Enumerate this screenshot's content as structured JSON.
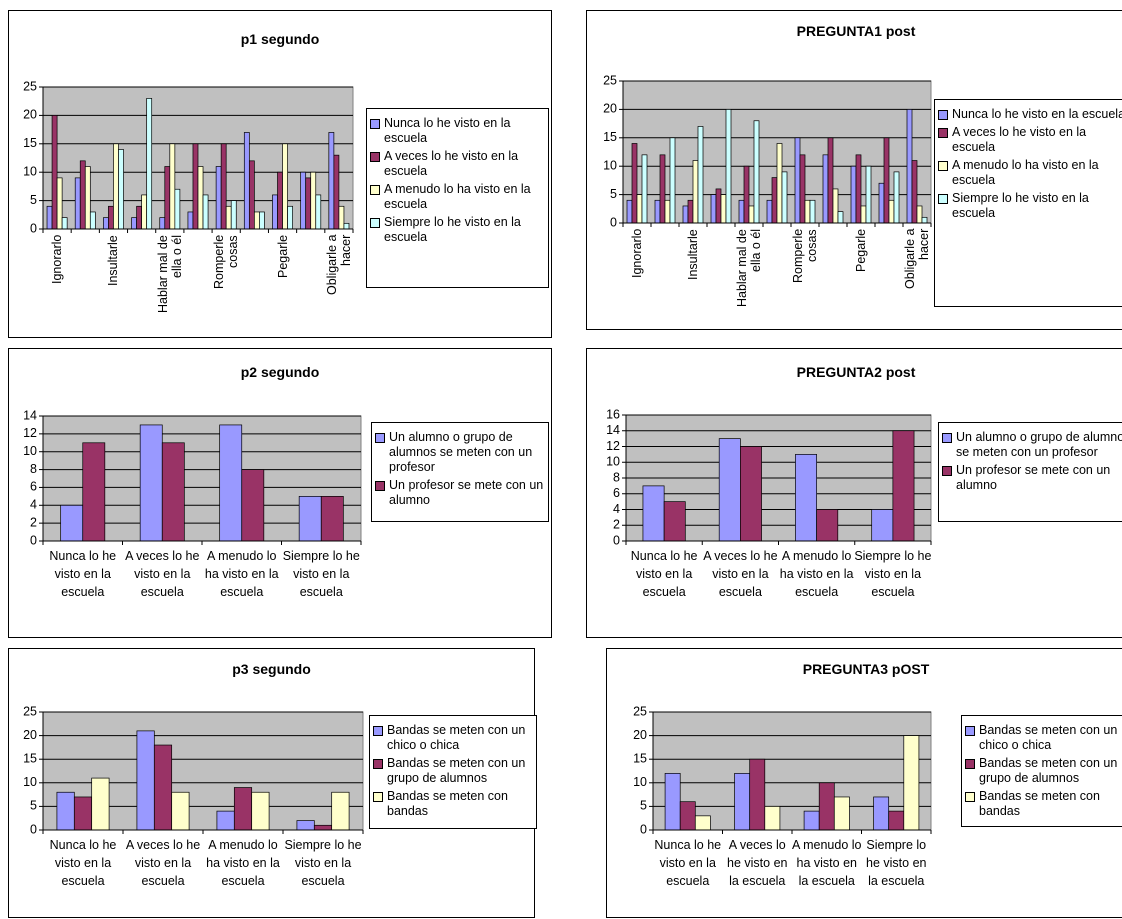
{
  "chart_data": [
    {
      "type": "bar",
      "title": "p1 segundo",
      "categories": [
        "Ignorarlo",
        null,
        "Insultarle",
        null,
        "Hablar mal de ella o él",
        null,
        "Romperle cosas",
        null,
        "Pegarle",
        null,
        "Obligarle a hacer"
      ],
      "series": [
        {
          "name": "Nunca lo he visto en la escuela",
          "color": "#9999ff",
          "values": [
            4,
            9,
            2,
            2,
            2,
            3,
            11,
            17,
            6,
            10,
            17
          ]
        },
        {
          "name": "A veces lo he visto en la escuela",
          "color": "#993366",
          "values": [
            20,
            12,
            4,
            4,
            11,
            15,
            15,
            12,
            10,
            9,
            13
          ]
        },
        {
          "name": "A menudo lo ha visto en la escuela",
          "color": "#ffffcc",
          "values": [
            9,
            11,
            15,
            6,
            15,
            11,
            4,
            3,
            15,
            10,
            4
          ]
        },
        {
          "name": "Siempre lo he visto en la escuela",
          "color": "#ccffff",
          "values": [
            2,
            3,
            14,
            23,
            7,
            6,
            5,
            3,
            4,
            6,
            1
          ]
        }
      ],
      "ylim": [
        0,
        25
      ],
      "yticks": [
        0,
        5,
        10,
        15,
        20,
        25
      ],
      "grid": true,
      "legend": "right"
    },
    {
      "type": "bar",
      "title": "PREGUNTA1 post",
      "categories": [
        "Ignorarlo",
        null,
        "Insultarle",
        null,
        "Hablar mal de ella o él",
        null,
        "Romperle cosas",
        null,
        "Pegarle",
        null,
        "Obligarle a hacer"
      ],
      "series": [
        {
          "name": "Nunca lo he visto en la escuela",
          "color": "#9999ff",
          "values": [
            4,
            4,
            3,
            5,
            4,
            4,
            15,
            12,
            10,
            7,
            20
          ]
        },
        {
          "name": "A veces lo he visto en la escuela",
          "color": "#993366",
          "values": [
            14,
            12,
            4,
            6,
            10,
            8,
            12,
            15,
            12,
            15,
            11
          ]
        },
        {
          "name": "A menudo lo ha visto en la escuela",
          "color": "#ffffcc",
          "values": [
            5,
            4,
            11,
            5,
            3,
            14,
            4,
            6,
            3,
            4,
            3
          ]
        },
        {
          "name": "Siempre lo he visto en la escuela",
          "color": "#ccffff",
          "values": [
            12,
            15,
            17,
            20,
            18,
            9,
            4,
            2,
            10,
            9,
            1
          ]
        }
      ],
      "ylim": [
        0,
        25
      ],
      "yticks": [
        0,
        5,
        10,
        15,
        20,
        25
      ],
      "grid": true,
      "legend": "right"
    },
    {
      "type": "bar",
      "title": "p2 segundo",
      "categories": [
        "Nunca lo he visto en la escuela",
        "A veces lo he visto en la escuela",
        "A menudo lo ha visto en la escuela",
        "Siempre lo he visto en la escuela"
      ],
      "series": [
        {
          "name": "Un alumno o grupo de alumnos se meten con un profesor",
          "color": "#9999ff",
          "values": [
            4,
            13,
            13,
            5
          ]
        },
        {
          "name": "Un profesor se mete con un alumno",
          "color": "#993366",
          "values": [
            11,
            11,
            8,
            5
          ]
        }
      ],
      "ylim": [
        0,
        14
      ],
      "yticks": [
        0,
        2,
        4,
        6,
        8,
        10,
        12,
        14
      ],
      "grid": true,
      "legend": "right"
    },
    {
      "type": "bar",
      "title": "PREGUNTA2 post",
      "categories": [
        "Nunca lo he visto en la escuela",
        "A veces lo he visto en la escuela",
        "A menudo lo ha visto en la escuela",
        "Siempre lo he visto en la escuela"
      ],
      "series": [
        {
          "name": "Un alumno o grupo de alumnos se meten con un profesor",
          "color": "#9999ff",
          "values": [
            7,
            13,
            11,
            4
          ]
        },
        {
          "name": "Un profesor se mete con un alumno",
          "color": "#993366",
          "values": [
            5,
            12,
            4,
            14
          ]
        }
      ],
      "ylim": [
        0,
        16
      ],
      "yticks": [
        0,
        2,
        4,
        6,
        8,
        10,
        12,
        14,
        16
      ],
      "grid": true,
      "legend": "right"
    },
    {
      "type": "bar",
      "title": "p3 segundo",
      "categories": [
        "Nunca lo he visto en la escuela",
        "A veces lo he visto en la escuela",
        "A menudo lo ha visto en la escuela",
        "Siempre lo he visto en la escuela"
      ],
      "series": [
        {
          "name": "Bandas se meten con un chico o chica",
          "color": "#9999ff",
          "values": [
            8,
            21,
            4,
            2
          ]
        },
        {
          "name": "Bandas se meten con un grupo de alumnos",
          "color": "#993366",
          "values": [
            7,
            18,
            9,
            1
          ]
        },
        {
          "name": "Bandas se meten con bandas",
          "color": "#ffffcc",
          "values": [
            11,
            8,
            8,
            8
          ]
        }
      ],
      "ylim": [
        0,
        25
      ],
      "yticks": [
        0,
        5,
        10,
        15,
        20,
        25
      ],
      "grid": true,
      "legend": "right"
    },
    {
      "type": "bar",
      "title": "PREGUNTA3 pOST",
      "categories": [
        "Nunca lo he visto en la escuela",
        "A veces lo he visto en la escuela",
        "A menudo lo ha visto en la escuela",
        "Siempre lo he visto en la escuela"
      ],
      "series": [
        {
          "name": "Bandas se meten con un chico o chica",
          "color": "#9999ff",
          "values": [
            12,
            12,
            4,
            7
          ]
        },
        {
          "name": "Bandas se meten con un grupo de alumnos",
          "color": "#993366",
          "values": [
            6,
            15,
            10,
            4
          ]
        },
        {
          "name": "Bandas se meten con bandas",
          "color": "#ffffcc",
          "values": [
            3,
            5,
            7,
            20
          ]
        }
      ],
      "ylim": [
        0,
        25
      ],
      "yticks": [
        0,
        5,
        10,
        15,
        20,
        25
      ],
      "grid": true,
      "legend": "right"
    }
  ]
}
